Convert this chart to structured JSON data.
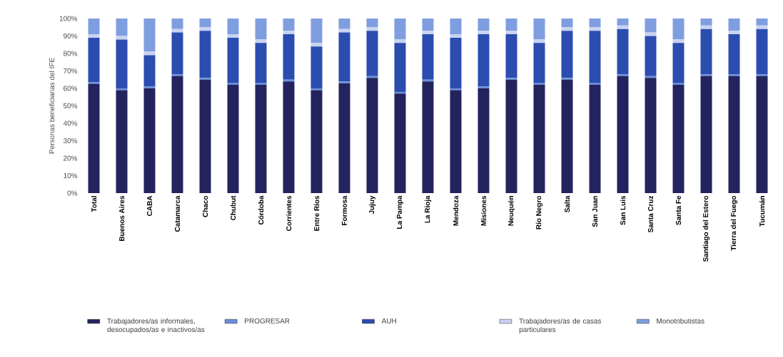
{
  "chart_data": {
    "type": "bar",
    "stacked": true,
    "ylabel": "Personas beneficiarias del IFE",
    "categories": [
      "Total",
      "Buenos Aires",
      "CABA",
      "Catamarca",
      "Chaco",
      "Chubut",
      "Córdoba",
      "Corrientes",
      "Entre Ríos",
      "Formosa",
      "Jujuy",
      "La Pampa",
      "La Rioja",
      "Mendoza",
      "Misiones",
      "Neuquén",
      "Río Negro",
      "Salta",
      "San Juan",
      "San Luis",
      "Santa Cruz",
      "Santa Fe",
      "Santiago del Estero",
      "Tierra del Fuego",
      "Tucumán"
    ],
    "series": [
      {
        "name": "Trabajadores/as informales, desocupados/as e inactivos/as",
        "color": "#23245e",
        "values": [
          62.5,
          59,
          60,
          67,
          65,
          62,
          62,
          64,
          59,
          63,
          66,
          57,
          64,
          59,
          60,
          65,
          62,
          65,
          62,
          67,
          66,
          62,
          67,
          67,
          67
        ]
      },
      {
        "name": "PROGRESAR",
        "color": "#6b8fdb",
        "values": [
          1,
          1,
          1,
          1,
          1,
          1,
          1,
          1,
          1,
          1,
          1,
          1,
          1,
          1,
          1,
          1,
          1,
          1,
          1,
          1,
          1,
          1,
          1,
          1,
          1
        ]
      },
      {
        "name": "AUH",
        "color": "#2b4db0",
        "values": [
          25.5,
          28,
          18,
          24,
          27,
          26,
          23,
          26,
          24,
          28,
          26,
          28,
          26,
          29,
          30,
          25,
          23,
          27,
          30,
          26,
          23,
          23,
          26,
          23,
          26
        ]
      },
      {
        "name": "Trabajadores/as de casas particulares",
        "color": "#c9d3f0",
        "values": [
          2,
          2,
          2,
          2,
          2,
          2,
          2,
          2,
          2,
          2,
          2,
          2,
          2,
          2,
          2,
          2,
          2,
          2,
          2,
          2,
          2,
          2,
          2,
          2,
          2
        ]
      },
      {
        "name": "Monotributistas",
        "color": "#7f9ee0",
        "values": [
          9,
          10,
          19,
          6,
          5,
          9,
          12,
          7,
          14,
          6,
          5,
          12,
          7,
          9,
          7,
          7,
          12,
          5,
          5,
          4,
          8,
          12,
          4,
          7,
          4
        ]
      }
    ],
    "ylim": [
      0,
      100
    ],
    "yticks": [
      {
        "value": 0,
        "label": "0%"
      },
      {
        "value": 10,
        "label": "10%"
      },
      {
        "value": 20,
        "label": "20%"
      },
      {
        "value": 30,
        "label": "30%"
      },
      {
        "value": 40,
        "label": "40%"
      },
      {
        "value": 50,
        "label": "50%"
      },
      {
        "value": 60,
        "label": "60%"
      },
      {
        "value": 70,
        "label": "70%"
      },
      {
        "value": 80,
        "label": "80%"
      },
      {
        "value": 90,
        "label": "90%"
      },
      {
        "value": 100,
        "label": "100%"
      }
    ],
    "legend": "bottom"
  }
}
